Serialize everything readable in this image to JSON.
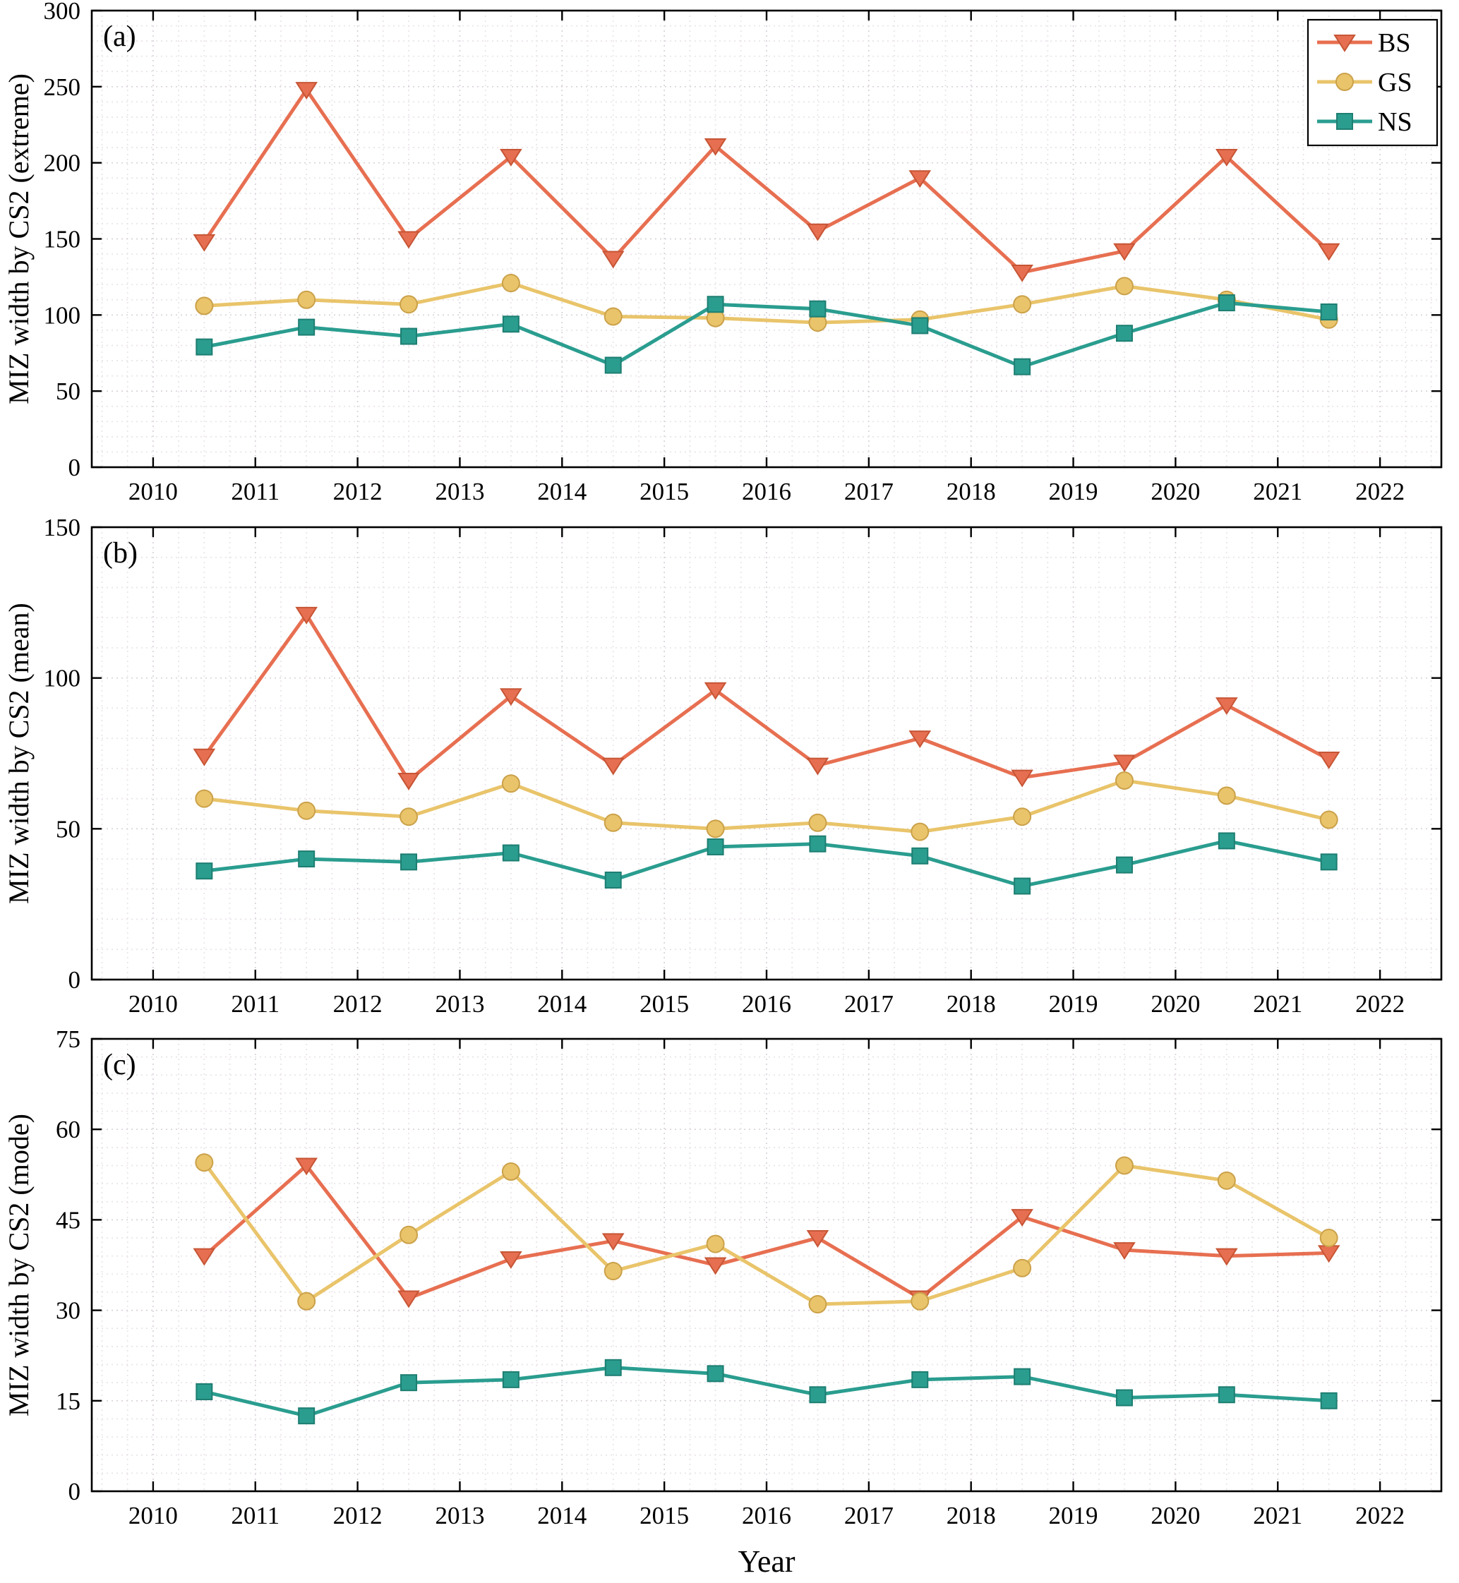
{
  "figure": {
    "xlabel": "Year",
    "x_ticks": [
      2010,
      2011,
      2012,
      2013,
      2014,
      2015,
      2016,
      2017,
      2018,
      2019,
      2020,
      2021,
      2022
    ],
    "x_range": [
      2009.4,
      2022.6
    ],
    "x_minor_step": 0.25,
    "x": [
      2010.5,
      2011.5,
      2012.5,
      2013.5,
      2014.5,
      2015.5,
      2016.5,
      2017.5,
      2018.5,
      2019.5,
      2020.5,
      2021.5
    ]
  },
  "legend": {
    "position": "top-right-panel-a",
    "entries": [
      {
        "label": "BS"
      },
      {
        "label": "GS"
      },
      {
        "label": "NS"
      }
    ]
  },
  "series_meta": [
    {
      "name": "BS",
      "color": "#E76F51",
      "edge": "#C65535",
      "marker": "triangle-down"
    },
    {
      "name": "GS",
      "color": "#E9C46A",
      "edge": "#CBA14A",
      "marker": "circle"
    },
    {
      "name": "NS",
      "color": "#2A9D8F",
      "edge": "#1E7E72",
      "marker": "square"
    }
  ],
  "style": {
    "grid_major": "#d9d2da",
    "grid_minor": "#eae4ea",
    "axis_color": "#000000",
    "background": "#ffffff"
  },
  "chart_data": [
    {
      "type": "line",
      "panel_label": "(a)",
      "ylabel": "MIZ width by CS2 (extreme)",
      "ylim": [
        0,
        300
      ],
      "yticks": [
        0,
        50,
        100,
        150,
        200,
        250,
        300
      ],
      "y_minor_step": 10,
      "grid": true,
      "legend_visible": true,
      "series": [
        {
          "name": "BS",
          "values": [
            148,
            248,
            150,
            204,
            137,
            211,
            155,
            190,
            128,
            142,
            204,
            142
          ]
        },
        {
          "name": "GS",
          "values": [
            106,
            110,
            107,
            121,
            99,
            98,
            95,
            97,
            107,
            119,
            110,
            97
          ]
        },
        {
          "name": "NS",
          "values": [
            79,
            92,
            86,
            94,
            67,
            107,
            104,
            93,
            66,
            88,
            108,
            102
          ]
        }
      ]
    },
    {
      "type": "line",
      "panel_label": "(b)",
      "ylabel": "MIZ width by CS2 (mean)",
      "ylim": [
        0,
        150
      ],
      "yticks": [
        0,
        50,
        100,
        150
      ],
      "y_minor_step": 10,
      "grid": true,
      "legend_visible": false,
      "series": [
        {
          "name": "BS",
          "values": [
            74,
            121,
            66,
            94,
            71,
            96,
            71,
            80,
            67,
            72,
            91,
            73
          ]
        },
        {
          "name": "GS",
          "values": [
            60,
            56,
            54,
            65,
            52,
            50,
            52,
            49,
            54,
            66,
            61,
            53
          ]
        },
        {
          "name": "NS",
          "values": [
            36,
            40,
            39,
            42,
            33,
            44,
            45,
            41,
            31,
            38,
            46,
            39
          ]
        }
      ]
    },
    {
      "type": "line",
      "panel_label": "(c)",
      "ylabel": "MIZ width by CS2 (mode)",
      "ylim": [
        0,
        75
      ],
      "yticks": [
        0,
        15,
        30,
        45,
        60,
        75
      ],
      "y_minor_step": 3,
      "grid": true,
      "legend_visible": false,
      "series": [
        {
          "name": "BS",
          "values": [
            39,
            54,
            32,
            38.5,
            41.5,
            37.5,
            42,
            32,
            45.5,
            40,
            39,
            39.5
          ]
        },
        {
          "name": "GS",
          "values": [
            54.5,
            31.5,
            42.5,
            53,
            36.5,
            41,
            31,
            31.5,
            37,
            54,
            51.5,
            42
          ]
        },
        {
          "name": "NS",
          "values": [
            16.5,
            12.5,
            18,
            18.5,
            20.5,
            19.5,
            16,
            18.5,
            19,
            15.5,
            16,
            15
          ]
        }
      ]
    }
  ]
}
